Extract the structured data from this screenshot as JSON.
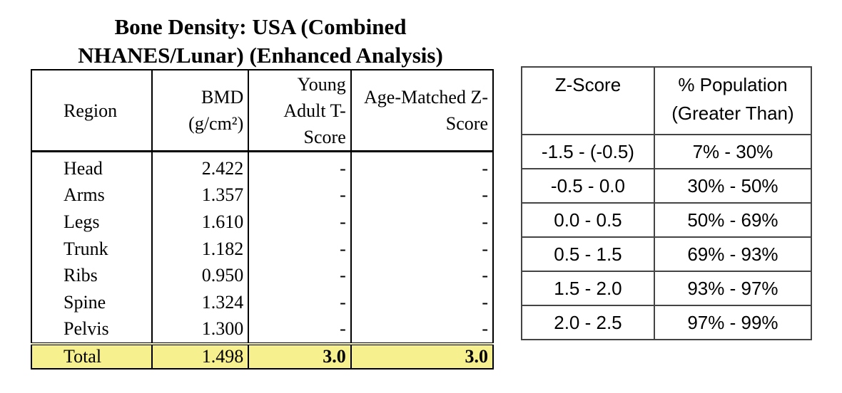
{
  "title": [
    "Bone Density: USA (Combined",
    "NHANES/Lunar) (Enhanced Analysis)"
  ],
  "table": {
    "header": [
      "Region",
      "BMD (g/cm²)",
      "Young Adult T-Score",
      "Age-Matched Z-Score"
    ],
    "rows": [
      [
        "Head",
        "2.422",
        "-",
        "-"
      ],
      [
        "Arms",
        "1.357",
        "-",
        "-"
      ],
      [
        "Legs",
        "1.610",
        "-",
        "-"
      ],
      [
        "Trunk",
        "1.182",
        "-",
        "-"
      ],
      [
        "Ribs",
        "0.950",
        "-",
        "-"
      ],
      [
        "Spine",
        "1.324",
        "-",
        "-"
      ],
      [
        "Pelvis",
        "1.300",
        "-",
        "-"
      ]
    ],
    "total": [
      "Total",
      "1.498",
      "3.0",
      "3.0"
    ]
  },
  "z_table": {
    "header": [
      "Z-Score",
      "% Population (Greater Than)"
    ],
    "rows": [
      [
        "-1.5 - (-0.5)",
        "7% - 30%"
      ],
      [
        "-0.5 - 0.0",
        "30% - 50%"
      ],
      [
        "0.0 - 0.5",
        "50% - 69%"
      ],
      [
        "0.5 - 1.5",
        "69% - 93%"
      ],
      [
        "1.5 - 2.0",
        "93% - 97%"
      ],
      [
        "2.0 - 2.5",
        "97% - 99%"
      ]
    ]
  }
}
